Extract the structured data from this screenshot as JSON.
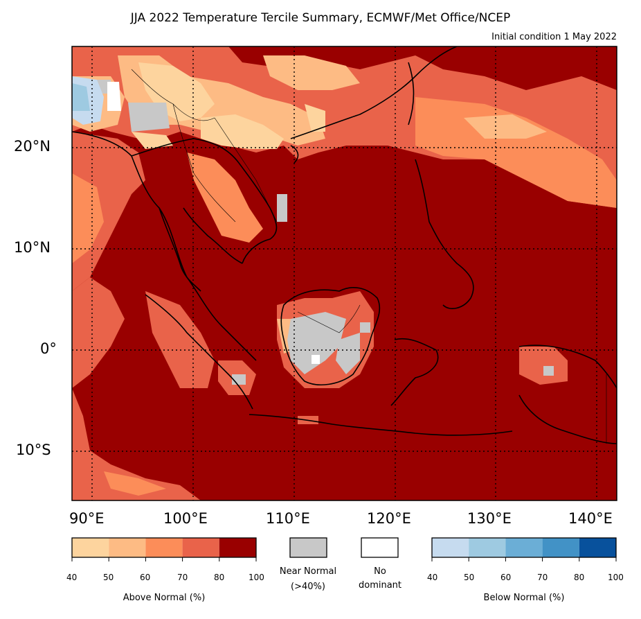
{
  "title": "JJA 2022 Temperature Tercile Summary, ECMWF/Met Office/NCEP",
  "subtitle": "Initial condition 1 May 2022",
  "axes": {
    "lon_labels": [
      "90°E",
      "100°E",
      "110°E",
      "120°E",
      "130°E",
      "140°E"
    ],
    "lat_labels": [
      "20°N",
      "10°N",
      "0°",
      "10°S"
    ],
    "lon_range": [
      88,
      142
    ],
    "lat_range": [
      -15,
      30
    ],
    "grid_lon": [
      90,
      100,
      110,
      120,
      130,
      140
    ],
    "grid_lat": [
      20,
      10,
      0,
      -10
    ],
    "grid": "dotted"
  },
  "legend": {
    "above": {
      "caption": "Above Normal (%)",
      "ticks": [
        "40",
        "50",
        "60",
        "70",
        "80",
        "100"
      ],
      "colors": [
        "#fdd49e",
        "#fdbb84",
        "#fc8d59",
        "#e9634a",
        "#990000"
      ]
    },
    "near": {
      "caption_line1": "Near Normal",
      "caption_line2": "(>40%)",
      "color": "#c8c8c8"
    },
    "none": {
      "caption_line1": "No",
      "caption_line2": "dominant",
      "color": "#ffffff"
    },
    "below": {
      "caption": "Below Normal (%)",
      "ticks": [
        "40",
        "50",
        "60",
        "70",
        "80",
        "100"
      ],
      "colors": [
        "#c6dbef",
        "#9ecae1",
        "#6baed6",
        "#4292c6",
        "#08519c"
      ]
    }
  }
}
